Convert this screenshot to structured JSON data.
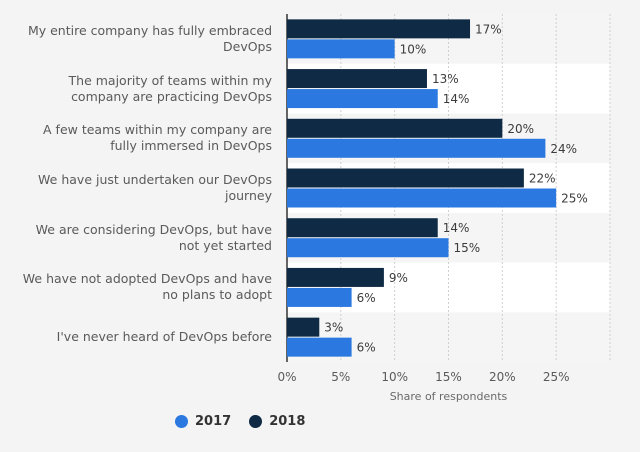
{
  "chart_data": {
    "type": "bar",
    "orientation": "horizontal",
    "categories": [
      "My entire company has fully embraced\nDevOps",
      "The majority of teams within my\ncompany are practicing DevOps",
      "A few teams within my company are\nfully immersed in DevOps",
      "We have just undertaken our DevOps\njourney",
      "We are considering DevOps, but have\nnot yet started",
      "We have not adopted DevOps and have\nno plans to adopt",
      "I've never heard of DevOps before"
    ],
    "series": [
      {
        "name": "2018",
        "color": "#0f2a44",
        "values": [
          17,
          13,
          20,
          22,
          14,
          9,
          3
        ]
      },
      {
        "name": "2017",
        "color": "#2a78e0",
        "values": [
          10,
          14,
          24,
          25,
          15,
          6,
          6
        ]
      }
    ],
    "xlabel": "Share of respondents",
    "ylabel": "",
    "xlim": [
      0,
      30
    ],
    "xticks": [
      0,
      5,
      10,
      15,
      20,
      25
    ],
    "tick_suffix": "%",
    "value_suffix": "%",
    "grid": true,
    "legend_position": "bottom-left",
    "legend": [
      {
        "name": "2017",
        "color": "#2a78e0"
      },
      {
        "name": "2018",
        "color": "#0f2a44"
      }
    ]
  }
}
